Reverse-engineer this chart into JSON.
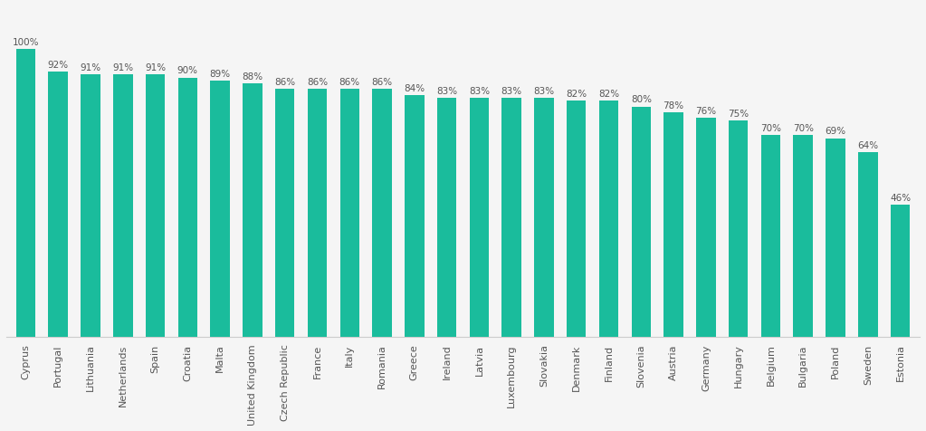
{
  "categories": [
    "Cyprus",
    "Portugal",
    "Lithuania",
    "Netherlands",
    "Spain",
    "Croatia",
    "Malta",
    "United Kingdom",
    "Czech Republic",
    "France",
    "Italy",
    "Romania",
    "Greece",
    "Ireland",
    "Latvia",
    "Luxembourg",
    "Slovakia",
    "Denmark",
    "Finland",
    "Slovenia",
    "Austria",
    "Germany",
    "Hungary",
    "Belgium",
    "Bulgaria",
    "Poland",
    "Sweden",
    "Estonia"
  ],
  "values": [
    100,
    92,
    91,
    91,
    91,
    90,
    89,
    88,
    86,
    86,
    86,
    86,
    84,
    83,
    83,
    83,
    83,
    82,
    82,
    80,
    78,
    76,
    75,
    70,
    70,
    69,
    64,
    46
  ],
  "bar_color": "#1ABC9C",
  "label_color": "#555555",
  "label_fontsize": 7.5,
  "xtick_fontsize": 8.0,
  "background_color": "#f5f5f5",
  "ylim": [
    0,
    115
  ],
  "bar_width": 0.6
}
